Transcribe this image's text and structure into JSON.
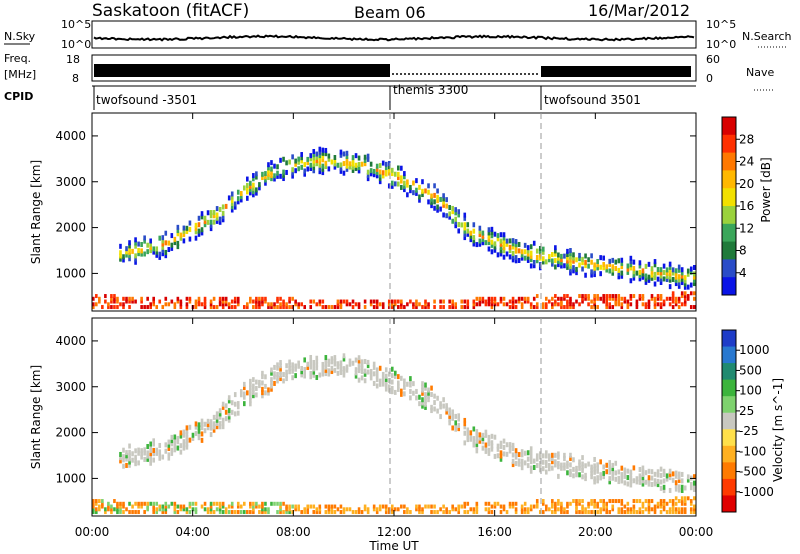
{
  "header": {
    "station": "Saskatoon (fitACF)",
    "beam": "Beam 06",
    "date": "16/Mar/2012"
  },
  "strip_left_labels": {
    "nsky": "N.Sky",
    "freq_line1": "Freq.",
    "freq_line2": "[MHz]",
    "cpid": "CPID"
  },
  "strip_right_labels": {
    "nsearch": "N.Search",
    "nave": "Nave"
  },
  "strip_ticks": {
    "noise_top": "10^5",
    "noise_bottom": "10^0",
    "freq_top": "18",
    "freq_bottom": "8",
    "nave_top": "60",
    "nave_bottom": "0"
  },
  "cpid_segments": [
    {
      "label": "twofsound -3501",
      "start_h": 0,
      "end_h": 12
    },
    {
      "label": "themis 3300",
      "start_h": 12,
      "end_h": 18
    },
    {
      "label": "twofsound 3501",
      "start_h": 18,
      "end_h": 24
    }
  ],
  "x_axis": {
    "label": "Time UT",
    "ticks": [
      "00:00",
      "04:00",
      "08:00",
      "12:00",
      "16:00",
      "20:00",
      "00:00"
    ]
  },
  "power_panel": {
    "ylabel": "Slant Range [km]",
    "yticks": [
      "1000",
      "2000",
      "3000",
      "4000"
    ],
    "colorbar_label": "Power [dB]",
    "colorbar_ticks": [
      "28",
      "24",
      "20",
      "16",
      "12",
      "8",
      "4"
    ],
    "colors": [
      "#d80000",
      "#ff3000",
      "#ff7800",
      "#ffb800",
      "#f2e000",
      "#9ad23c",
      "#3aa65a",
      "#1f7a3a",
      "#2a4cc8",
      "#0a14e6"
    ]
  },
  "velocity_panel": {
    "ylabel": "Slant Range [km]",
    "yticks": [
      "1000",
      "2000",
      "3000",
      "4000"
    ],
    "colorbar_label": "Velocity [m s^-1]",
    "colorbar_ticks": [
      "1000",
      "500",
      "100",
      "25",
      "-25",
      "-100",
      "-500",
      "-1000"
    ],
    "colors": [
      "#1e3cc8",
      "#2878d0",
      "#208a70",
      "#3cb43c",
      "#7ed26e",
      "#c8c8c0",
      "#ffe04a",
      "#ffb020",
      "#ff7a00",
      "#ff3a00",
      "#e00000"
    ]
  },
  "chart_data": {
    "type": "heatmap",
    "title": "Saskatoon (fitACF) Beam 06 16/Mar/2012",
    "xlabel": "Time UT",
    "ylabel": "Slant Range [km]",
    "xlim_hours": [
      0,
      24
    ],
    "ylim_km": [
      180,
      4500
    ],
    "grid": false,
    "vertical_markers_hours": [
      12,
      18
    ],
    "scatter_bands": [
      {
        "name": "near-range",
        "points_km": [
          [
            0,
            500
          ],
          [
            2,
            480
          ],
          [
            4,
            450
          ],
          [
            6,
            460
          ],
          [
            8,
            430
          ],
          [
            10,
            420
          ],
          [
            12,
            400
          ],
          [
            14,
            420
          ],
          [
            16,
            450
          ],
          [
            18,
            500
          ],
          [
            20,
            520
          ],
          [
            22,
            540
          ],
          [
            24,
            560
          ]
        ]
      },
      {
        "name": "far-range arc",
        "points_km": [
          [
            1,
            1400
          ],
          [
            3,
            1650
          ],
          [
            5,
            2300
          ],
          [
            6,
            2800
          ],
          [
            7.5,
            3300
          ],
          [
            9,
            3450
          ],
          [
            10.5,
            3400
          ],
          [
            12,
            3100
          ],
          [
            13.5,
            2700
          ],
          [
            15,
            1900
          ],
          [
            17,
            1450
          ],
          [
            19,
            1250
          ],
          [
            21,
            1100
          ],
          [
            23,
            950
          ],
          [
            24,
            900
          ]
        ]
      }
    ],
    "power_db_range": [
      0,
      30
    ],
    "velocity_range_mps": [
      -1000,
      1000
    ]
  }
}
